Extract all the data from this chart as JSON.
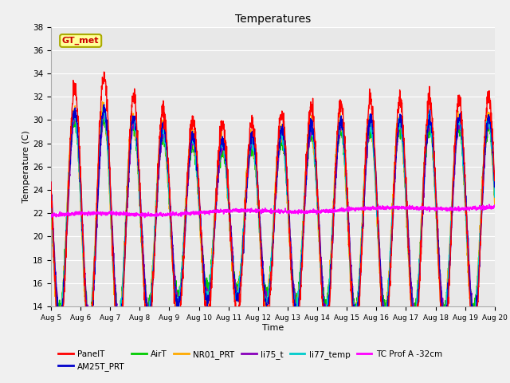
{
  "title": "Temperatures",
  "xlabel": "Time",
  "ylabel": "Temperature (C)",
  "ylim": [
    14,
    38
  ],
  "xlim": [
    0,
    15
  ],
  "xtick_labels": [
    "Aug 5",
    "Aug 6",
    "Aug 7",
    "Aug 8",
    "Aug 9",
    "Aug 10",
    "Aug 11",
    "Aug 12",
    "Aug 13",
    "Aug 14",
    "Aug 15",
    "Aug 16",
    "Aug 17",
    "Aug 18",
    "Aug 19",
    "Aug 20"
  ],
  "series": {
    "PanelT": {
      "color": "#ff0000",
      "lw": 1.0
    },
    "AM25T_PRT": {
      "color": "#0000cc",
      "lw": 1.0
    },
    "AirT": {
      "color": "#00cc00",
      "lw": 1.0
    },
    "NR01_PRT": {
      "color": "#ffaa00",
      "lw": 1.0
    },
    "li75_t": {
      "color": "#8800bb",
      "lw": 1.0
    },
    "li77_temp": {
      "color": "#00cccc",
      "lw": 1.0
    },
    "TC Prof A -32cm": {
      "color": "#ff00ff",
      "lw": 1.2
    }
  },
  "gt_met_box": {
    "text": "GT_met",
    "facecolor": "#ffff99",
    "edgecolor": "#aaaa00",
    "textcolor": "#cc0000"
  },
  "bg_color": "#f0f0f0",
  "plot_bg_color": "#e8e8e8",
  "grid_color": "#ffffff",
  "yticks": [
    14,
    16,
    18,
    20,
    22,
    24,
    26,
    28,
    30,
    32,
    34,
    36,
    38
  ]
}
